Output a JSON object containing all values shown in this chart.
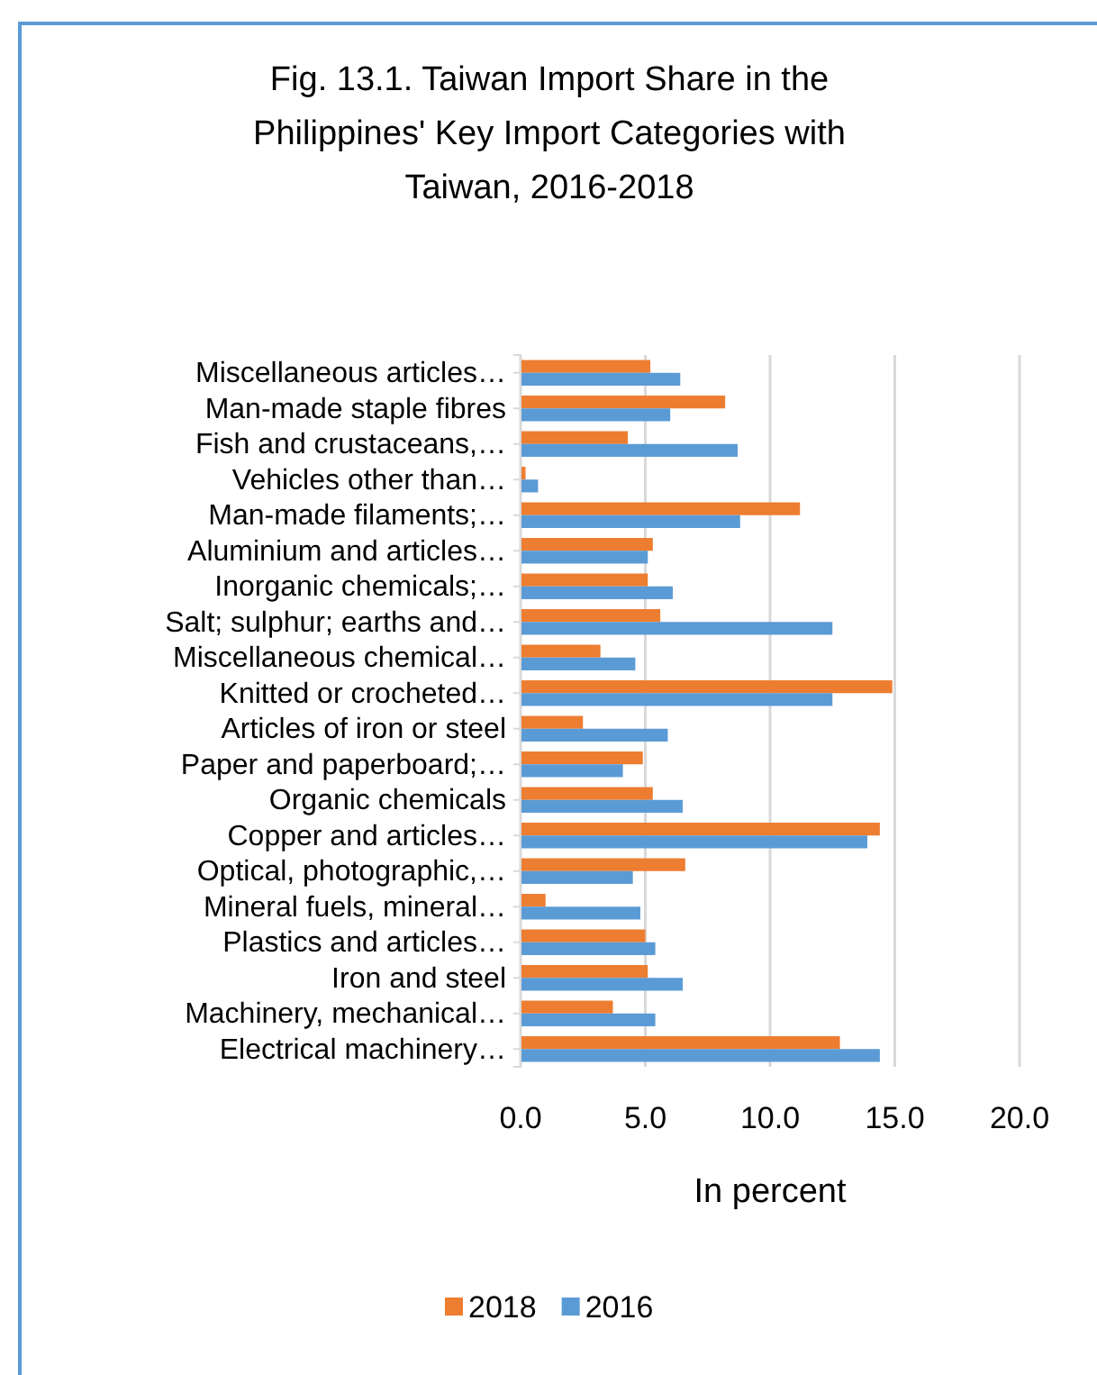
{
  "chart_data": {
    "type": "bar",
    "orientation": "horizontal",
    "title": "Fig. 13.1. Taiwan Import Share in the Philippines' Key Import Categories with Taiwan, 2016-2018",
    "xlabel": "In percent",
    "categories": [
      "Miscellaneous articles…",
      "Man-made staple fibres",
      "Fish and crustaceans,…",
      "Vehicles other than…",
      "Man-made filaments;…",
      "Aluminium and articles…",
      "Inorganic chemicals;…",
      "Salt; sulphur; earths and…",
      "Miscellaneous chemical…",
      "Knitted or crocheted…",
      "Articles of iron or steel",
      "Paper and paperboard;…",
      "Organic chemicals",
      "Copper and articles…",
      "Optical, photographic,…",
      "Mineral fuels, mineral…",
      "Plastics and articles…",
      "Iron and steel",
      "Machinery, mechanical…",
      "Electrical machinery…"
    ],
    "series": [
      {
        "name": "2018",
        "color": "#ed7d31",
        "values": [
          5.2,
          8.2,
          4.3,
          0.2,
          11.2,
          5.3,
          5.1,
          5.6,
          3.2,
          14.9,
          2.5,
          4.9,
          5.3,
          14.4,
          6.6,
          1.0,
          5.0,
          5.1,
          3.7,
          12.8
        ]
      },
      {
        "name": "2016",
        "color": "#5b9bd5",
        "values": [
          6.4,
          6.0,
          8.7,
          0.7,
          8.8,
          5.1,
          6.1,
          12.5,
          4.6,
          12.5,
          5.9,
          4.1,
          6.5,
          13.9,
          4.5,
          4.8,
          5.4,
          6.5,
          5.4,
          14.4
        ]
      }
    ],
    "xlim": [
      0,
      20
    ],
    "xticks": [
      {
        "value": 0,
        "label": "0.0"
      },
      {
        "value": 5,
        "label": "5.0"
      },
      {
        "value": 10,
        "label": "10.0"
      },
      {
        "value": 15,
        "label": "15.0"
      },
      {
        "value": 20,
        "label": "20.0"
      }
    ],
    "grid": "x",
    "legend": "bottom"
  }
}
